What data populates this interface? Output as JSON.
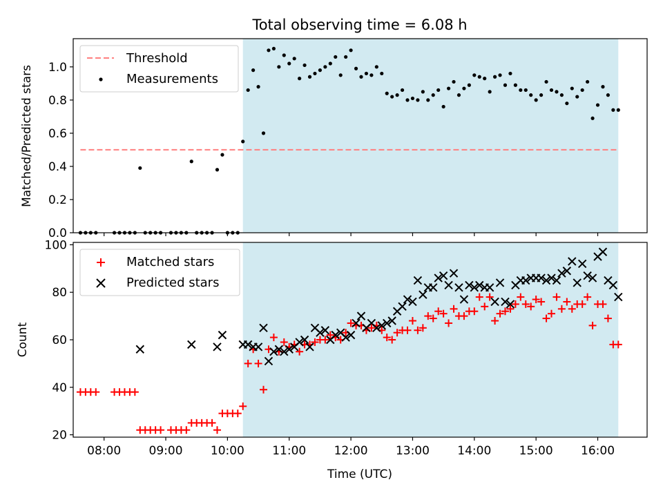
{
  "figure": {
    "title": "Total observing time = 6.08 h",
    "xlabel": "Time (UTC)"
  },
  "colors": {
    "shade": "#add8e6",
    "threshold": "#ff7f7f",
    "measurements": "#000000",
    "matched": "#ff0000",
    "predicted": "#000000"
  },
  "chart_data": [
    {
      "type": "scatter",
      "ylabel": "Matched/Predicted stars",
      "xlim": [
        "07:30",
        "16:48"
      ],
      "ylim": [
        0,
        1.17
      ],
      "yticks": [
        0.0,
        0.2,
        0.4,
        0.6,
        0.8,
        1.0
      ],
      "ytick_labels": [
        "0.0",
        "0.2",
        "0.4",
        "0.6",
        "0.8",
        "1.0"
      ],
      "shaded_region": [
        "10:15",
        "16:20"
      ],
      "legend_position": "upper left",
      "legend": [
        "Threshold",
        "Measurements"
      ],
      "threshold": {
        "name": "Threshold",
        "y": 0.5,
        "x_range": [
          "07:37",
          "16:20"
        ]
      },
      "series": [
        {
          "name": "Measurements",
          "marker": "dot",
          "x": [
            "07:37",
            "07:42",
            "07:47",
            "07:52",
            "08:10",
            "08:15",
            "08:20",
            "08:25",
            "08:30",
            "08:35",
            "08:40",
            "08:45",
            "08:50",
            "08:55",
            "09:05",
            "09:10",
            "09:15",
            "09:20",
            "09:25",
            "09:30",
            "09:35",
            "09:40",
            "09:45",
            "09:50",
            "09:55",
            "10:00",
            "10:05",
            "10:10",
            "10:15",
            "10:20",
            "10:25",
            "10:30",
            "10:35",
            "10:40",
            "10:45",
            "10:50",
            "10:55",
            "11:00",
            "11:05",
            "11:10",
            "11:15",
            "11:20",
            "11:25",
            "11:30",
            "11:35",
            "11:40",
            "11:45",
            "11:50",
            "11:55",
            "12:00",
            "12:05",
            "12:10",
            "12:15",
            "12:20",
            "12:25",
            "12:30",
            "12:35",
            "12:40",
            "12:45",
            "12:50",
            "12:55",
            "13:00",
            "13:05",
            "13:10",
            "13:15",
            "13:20",
            "13:25",
            "13:30",
            "13:35",
            "13:40",
            "13:45",
            "13:50",
            "13:55",
            "14:00",
            "14:05",
            "14:10",
            "14:15",
            "14:20",
            "14:25",
            "14:30",
            "14:35",
            "14:40",
            "14:45",
            "14:50",
            "14:55",
            "15:00",
            "15:05",
            "15:10",
            "15:15",
            "15:20",
            "15:25",
            "15:30",
            "15:35",
            "15:40",
            "15:45",
            "15:50",
            "15:55",
            "16:00",
            "16:05",
            "16:10",
            "16:15",
            "16:20"
          ],
          "y": [
            0,
            0,
            0,
            0,
            0,
            0,
            0,
            0,
            0,
            0.39,
            0,
            0,
            0,
            0,
            0,
            0,
            0,
            0,
            0.43,
            0,
            0,
            0,
            0,
            0.38,
            0.47,
            0,
            0,
            0,
            0.55,
            0.86,
            0.98,
            0.88,
            0.6,
            1.1,
            1.11,
            1.0,
            1.07,
            1.02,
            1.05,
            0.93,
            1.01,
            0.94,
            0.96,
            0.98,
            1.0,
            1.02,
            1.06,
            0.95,
            1.06,
            1.1,
            0.99,
            0.94,
            0.96,
            0.95,
            1.0,
            0.96,
            0.84,
            0.82,
            0.83,
            0.86,
            0.8,
            0.81,
            0.8,
            0.85,
            0.8,
            0.83,
            0.86,
            0.76,
            0.87,
            0.91,
            0.83,
            0.87,
            0.89,
            0.95,
            0.94,
            0.93,
            0.85,
            0.94,
            0.95,
            0.89,
            0.96,
            0.89,
            0.86,
            0.86,
            0.83,
            0.8,
            0.83,
            0.91,
            0.86,
            0.85,
            0.83,
            0.78,
            0.87,
            0.82,
            0.86,
            0.91,
            0.69,
            0.77,
            0.88,
            0.83,
            0.74,
            0.74
          ]
        }
      ]
    },
    {
      "type": "scatter",
      "ylabel": "Count",
      "xlim": [
        "07:30",
        "16:48"
      ],
      "ylim": [
        19,
        101
      ],
      "yticks": [
        20,
        40,
        60,
        80,
        100
      ],
      "ytick_labels": [
        "20",
        "40",
        "60",
        "80",
        "100"
      ],
      "xticks": [
        "08:00",
        "09:00",
        "10:00",
        "11:00",
        "12:00",
        "13:00",
        "14:00",
        "15:00",
        "16:00"
      ],
      "xtick_labels": [
        "08:00",
        "09:00",
        "10:00",
        "11:00",
        "12:00",
        "13:00",
        "14:00",
        "15:00",
        "16:00"
      ],
      "shaded_region": [
        "10:15",
        "16:20"
      ],
      "legend_position": "upper left",
      "legend": [
        "Matched stars",
        "Predicted stars"
      ],
      "series": [
        {
          "name": "Matched stars",
          "marker": "plus",
          "x": [
            "07:37",
            "07:42",
            "07:47",
            "07:52",
            "08:10",
            "08:15",
            "08:20",
            "08:25",
            "08:30",
            "08:35",
            "08:40",
            "08:45",
            "08:50",
            "08:55",
            "09:05",
            "09:10",
            "09:15",
            "09:20",
            "09:25",
            "09:30",
            "09:35",
            "09:40",
            "09:45",
            "09:50",
            "09:55",
            "10:00",
            "10:05",
            "10:10",
            "10:15",
            "10:20",
            "10:25",
            "10:30",
            "10:35",
            "10:40",
            "10:45",
            "10:50",
            "10:55",
            "11:00",
            "11:05",
            "11:10",
            "11:15",
            "11:20",
            "11:25",
            "11:30",
            "11:35",
            "11:40",
            "11:45",
            "11:50",
            "11:55",
            "12:00",
            "12:05",
            "12:10",
            "12:15",
            "12:20",
            "12:25",
            "12:30",
            "12:35",
            "12:40",
            "12:45",
            "12:50",
            "12:55",
            "13:00",
            "13:05",
            "13:10",
            "13:15",
            "13:20",
            "13:25",
            "13:30",
            "13:35",
            "13:40",
            "13:45",
            "13:50",
            "13:55",
            "14:00",
            "14:05",
            "14:10",
            "14:15",
            "14:20",
            "14:25",
            "14:30",
            "14:35",
            "14:40",
            "14:45",
            "14:50",
            "14:55",
            "15:00",
            "15:05",
            "15:10",
            "15:15",
            "15:20",
            "15:25",
            "15:30",
            "15:35",
            "15:40",
            "15:45",
            "15:50",
            "15:55",
            "16:00",
            "16:05",
            "16:10",
            "16:15",
            "16:20"
          ],
          "y": [
            38,
            38,
            38,
            38,
            38,
            38,
            38,
            38,
            38,
            22,
            22,
            22,
            22,
            22,
            22,
            22,
            22,
            22,
            25,
            25,
            25,
            25,
            25,
            22,
            29,
            29,
            29,
            29,
            32,
            50,
            56,
            50,
            39,
            56,
            61,
            55,
            59,
            57,
            58,
            55,
            58,
            58,
            59,
            60,
            60,
            62,
            61,
            60,
            63,
            67,
            66,
            66,
            64,
            65,
            66,
            64,
            61,
            60,
            63,
            64,
            64,
            68,
            64,
            65,
            70,
            69,
            72,
            71,
            67,
            73,
            70,
            70,
            72,
            72,
            78,
            74,
            78,
            68,
            71,
            72,
            73,
            75,
            78,
            75,
            74,
            77,
            76,
            69,
            71,
            78,
            73,
            76,
            73,
            75,
            75,
            78,
            66,
            75,
            75,
            69,
            58,
            58
          ]
        },
        {
          "name": "Predicted stars",
          "marker": "x",
          "x": [
            "08:35",
            "09:25",
            "09:50",
            "09:55",
            "10:15",
            "10:20",
            "10:25",
            "10:30",
            "10:35",
            "10:40",
            "10:45",
            "10:50",
            "10:55",
            "11:00",
            "11:05",
            "11:10",
            "11:15",
            "11:20",
            "11:25",
            "11:30",
            "11:35",
            "11:40",
            "11:45",
            "11:50",
            "11:55",
            "12:00",
            "12:05",
            "12:10",
            "12:15",
            "12:20",
            "12:25",
            "12:30",
            "12:35",
            "12:40",
            "12:45",
            "12:50",
            "12:55",
            "13:00",
            "13:05",
            "13:10",
            "13:15",
            "13:20",
            "13:25",
            "13:30",
            "13:35",
            "13:40",
            "13:45",
            "13:50",
            "13:55",
            "14:00",
            "14:05",
            "14:10",
            "14:15",
            "14:20",
            "14:25",
            "14:30",
            "14:35",
            "14:40",
            "14:45",
            "14:50",
            "14:55",
            "15:00",
            "15:05",
            "15:10",
            "15:15",
            "15:20",
            "15:25",
            "15:30",
            "15:35",
            "15:40",
            "15:45",
            "15:50",
            "15:55",
            "16:00",
            "16:05",
            "16:10",
            "16:15",
            "16:20"
          ],
          "y": [
            56,
            58,
            57,
            62,
            58,
            58,
            57,
            57,
            65,
            51,
            55,
            56,
            55,
            56,
            57,
            59,
            60,
            57,
            65,
            63,
            64,
            60,
            62,
            63,
            61,
            62,
            67,
            70,
            65,
            67,
            65,
            66,
            67,
            68,
            72,
            74,
            77,
            76,
            85,
            79,
            82,
            82,
            86,
            87,
            83,
            88,
            82,
            77,
            83,
            82,
            83,
            82,
            82,
            76,
            84,
            76,
            75,
            83,
            85,
            85,
            86,
            86,
            86,
            85,
            86,
            85,
            88,
            89,
            93,
            84,
            92,
            87,
            86,
            95,
            97,
            85,
            83,
            78
          ]
        }
      ]
    }
  ]
}
